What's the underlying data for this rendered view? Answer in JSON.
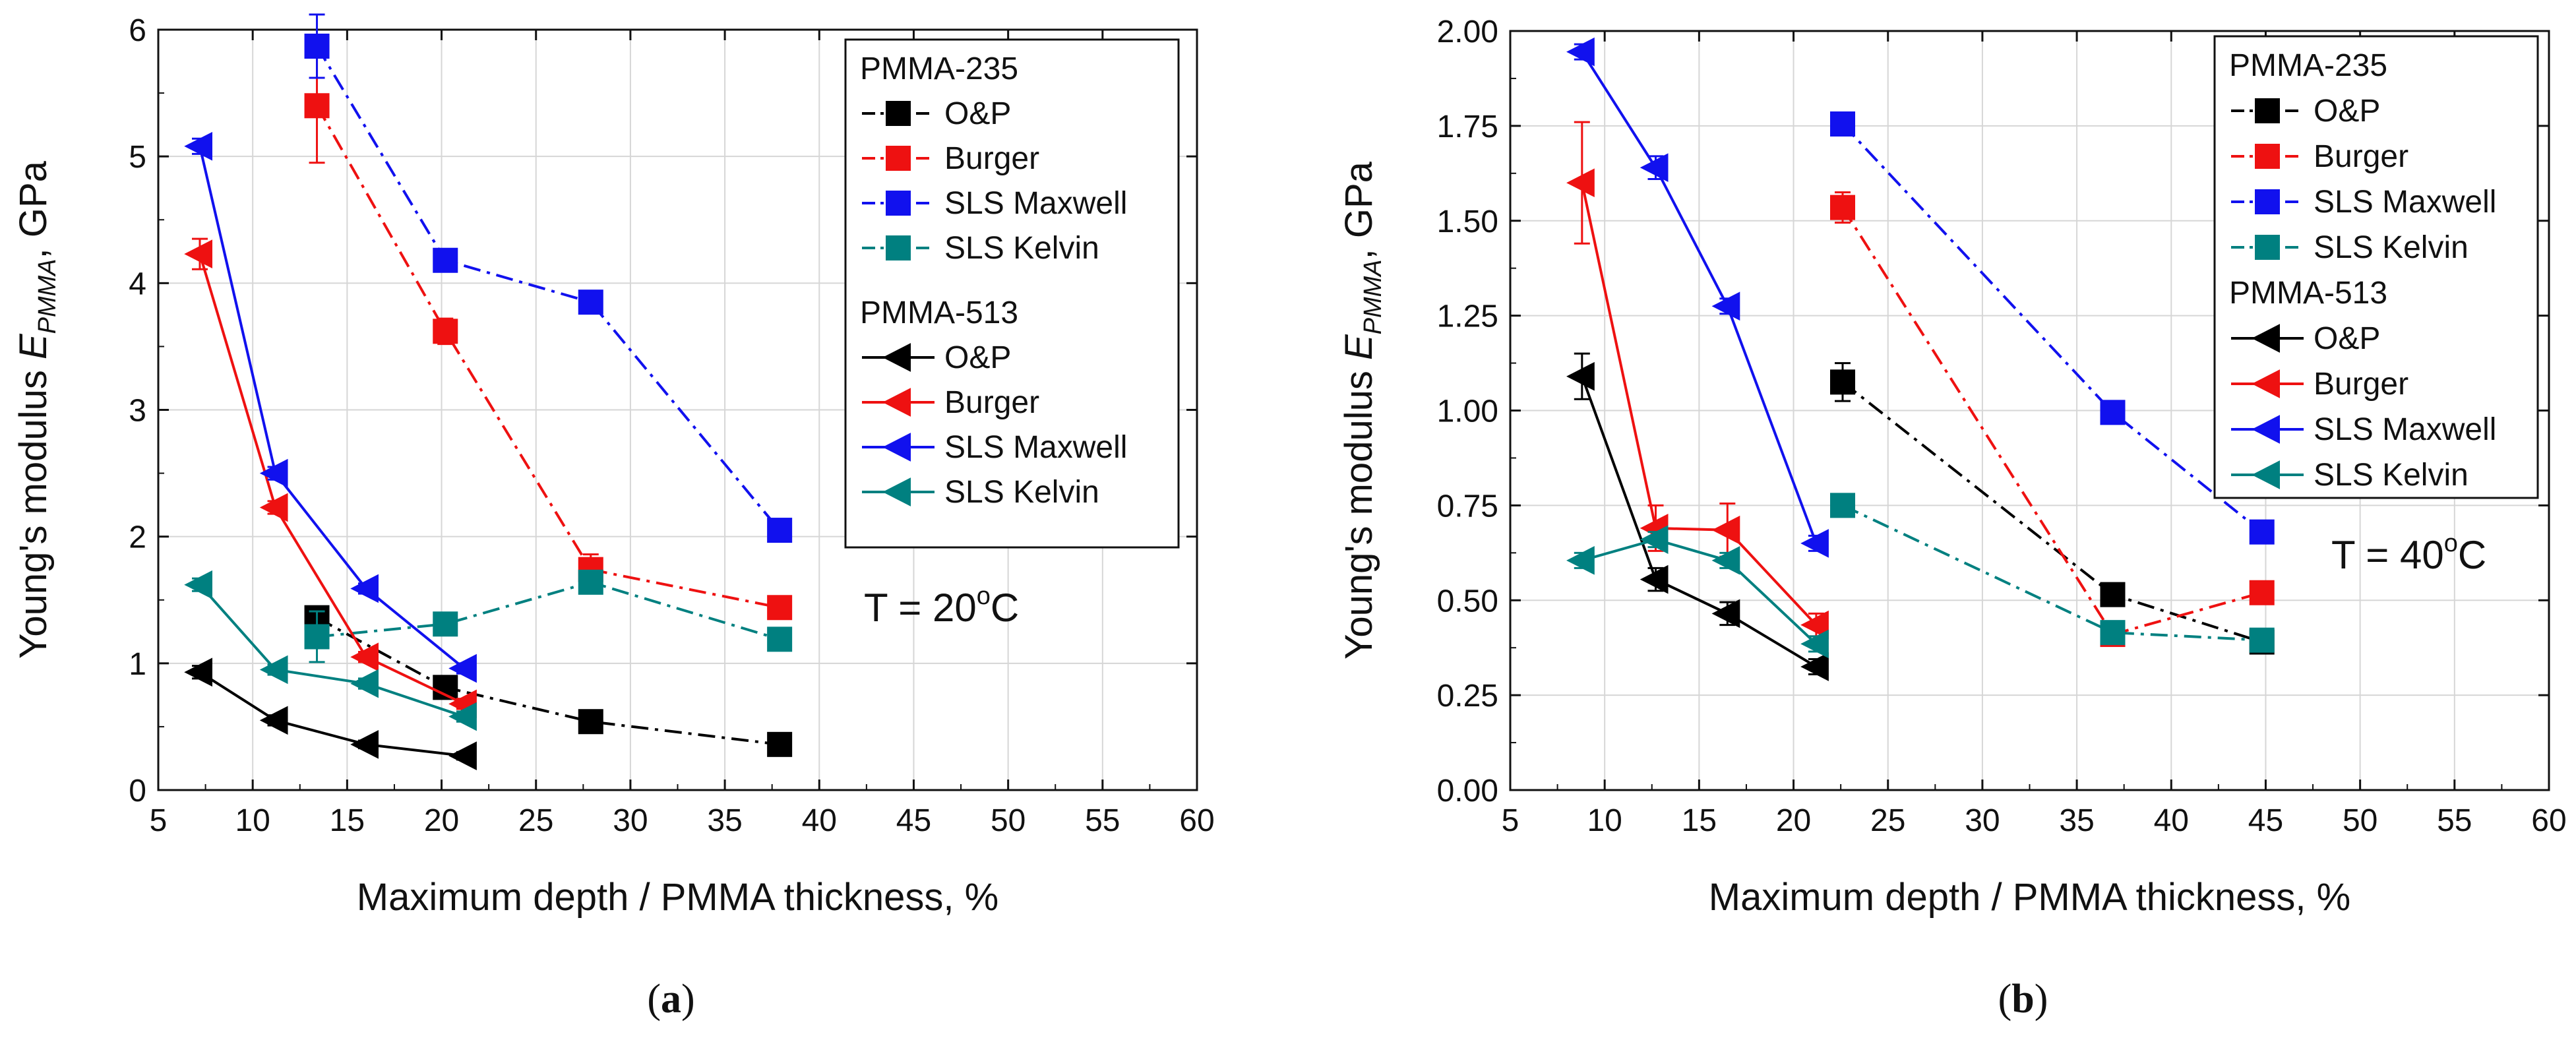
{
  "chart_data": [
    {
      "type": "line",
      "panel_label": "a",
      "xlabel": "Maximum depth / PMMA thickness, %",
      "ylabel_prefix": "Young's modulus ",
      "ylabel_symbol": "E",
      "ylabel_subscript": "PMMA",
      "ylabel_suffix": ", GPa",
      "xlim": [
        5,
        60
      ],
      "ylim": [
        0,
        6
      ],
      "xticks": [
        5,
        10,
        15,
        20,
        25,
        30,
        35,
        40,
        45,
        50,
        55,
        60
      ],
      "yticks": [
        0,
        1,
        2,
        3,
        4,
        5,
        6
      ],
      "ytick_labels": [
        "0",
        "1",
        "2",
        "3",
        "4",
        "5",
        "6"
      ],
      "grid": true,
      "legend_position": "top-right",
      "annotation": {
        "prefix": "T = 20",
        "degree": "o",
        "unit": "C"
      },
      "groups": [
        {
          "title": "PMMA-235",
          "series": [
            {
              "name": "O&P",
              "color": "#000000",
              "marker": "square",
              "linestyle": "dashdot",
              "x": [
                13.4,
                20.2,
                27.9,
                37.9
              ],
              "y": [
                1.36,
                0.81,
                0.54,
                0.36
              ],
              "err": [
                0.05,
                0.05,
                0.04,
                0.03
              ]
            },
            {
              "name": "Burger",
              "color": "#ee1111",
              "marker": "square",
              "linestyle": "dashdot",
              "x": [
                13.4,
                20.2,
                27.9,
                37.9
              ],
              "y": [
                5.4,
                3.62,
                1.74,
                1.44
              ],
              "err": [
                0.45,
                0.1,
                0.12,
                0.05
              ]
            },
            {
              "name": "SLS Maxwell",
              "color": "#1111ee",
              "marker": "square",
              "linestyle": "dashdot",
              "x": [
                13.4,
                20.2,
                27.9,
                37.9
              ],
              "y": [
                5.87,
                4.18,
                3.85,
                2.05
              ],
              "err": [
                0.25,
                0.05,
                0.05,
                0.04
              ]
            },
            {
              "name": "SLS Kelvin",
              "color": "#008080",
              "marker": "square",
              "linestyle": "dashdot",
              "x": [
                13.4,
                20.2,
                27.9,
                37.9
              ],
              "y": [
                1.21,
                1.31,
                1.64,
                1.19
              ],
              "err": [
                0.2,
                0.04,
                0.04,
                0.04
              ]
            }
          ]
        },
        {
          "title": "PMMA-513",
          "series": [
            {
              "name": "O&P",
              "color": "#000000",
              "marker": "triangle-left",
              "linestyle": "solid",
              "x": [
                7.2,
                11.2,
                16.0,
                21.2
              ],
              "y": [
                0.93,
                0.55,
                0.36,
                0.27
              ],
              "err": [
                0.05,
                0.04,
                0.03,
                0.03
              ]
            },
            {
              "name": "Burger",
              "color": "#ee1111",
              "marker": "triangle-left",
              "linestyle": "solid",
              "x": [
                7.2,
                11.2,
                16.0,
                21.2
              ],
              "y": [
                4.23,
                2.23,
                1.05,
                0.68
              ],
              "err": [
                0.12,
                0.05,
                0.04,
                0.04
              ]
            },
            {
              "name": "SLS Maxwell",
              "color": "#1111ee",
              "marker": "triangle-left",
              "linestyle": "solid",
              "x": [
                7.2,
                11.2,
                16.0,
                21.2
              ],
              "y": [
                5.08,
                2.5,
                1.59,
                0.96
              ],
              "err": [
                0.06,
                0.05,
                0.04,
                0.04
              ]
            },
            {
              "name": "SLS Kelvin",
              "color": "#008080",
              "marker": "triangle-left",
              "linestyle": "solid",
              "x": [
                7.2,
                11.2,
                16.0,
                21.2
              ],
              "y": [
                1.62,
                0.95,
                0.84,
                0.58
              ],
              "err": [
                0.05,
                0.04,
                0.04,
                0.04
              ]
            }
          ]
        }
      ]
    },
    {
      "type": "line",
      "panel_label": "b",
      "xlabel": "Maximum depth / PMMA thickness, %",
      "ylabel_prefix": "Young's modulus ",
      "ylabel_symbol": "E",
      "ylabel_subscript": "PMMA",
      "ylabel_suffix": ", GPa",
      "xlim": [
        5,
        60
      ],
      "ylim": [
        0,
        2
      ],
      "xticks": [
        5,
        10,
        15,
        20,
        25,
        30,
        35,
        40,
        45,
        50,
        55,
        60
      ],
      "yticks": [
        0,
        0.25,
        0.5,
        0.75,
        1.0,
        1.25,
        1.5,
        1.75,
        2.0
      ],
      "ytick_labels": [
        "0.00",
        "0.25",
        "0.50",
        "0.75",
        "1.00",
        "1.25",
        "1.50",
        "1.75",
        "2.00"
      ],
      "grid": true,
      "legend_position": "top-right",
      "annotation": {
        "prefix": "T = 40",
        "degree": "o",
        "unit": "C"
      },
      "groups": [
        {
          "title": "PMMA-235",
          "series": [
            {
              "name": "O&P",
              "color": "#000000",
              "marker": "square",
              "linestyle": "dashdot",
              "x": [
                22.6,
                36.9,
                44.8
              ],
              "y": [
                1.075,
                0.515,
                0.39
              ],
              "err": [
                0.05,
                0.02,
                0.02
              ]
            },
            {
              "name": "Burger",
              "color": "#ee1111",
              "marker": "square",
              "linestyle": "dashdot",
              "x": [
                22.6,
                36.9,
                44.8
              ],
              "y": [
                1.535,
                0.41,
                0.52
              ],
              "err": [
                0.04,
                0.02,
                0.02
              ]
            },
            {
              "name": "SLS Maxwell",
              "color": "#1111ee",
              "marker": "square",
              "linestyle": "dashdot",
              "x": [
                22.6,
                36.9,
                44.8
              ],
              "y": [
                1.755,
                0.995,
                0.68
              ],
              "err": [
                0.02,
                0.02,
                0.02
              ]
            },
            {
              "name": "SLS Kelvin",
              "color": "#008080",
              "marker": "square",
              "linestyle": "dashdot",
              "x": [
                22.6,
                36.9,
                44.8
              ],
              "y": [
                0.75,
                0.415,
                0.395
              ],
              "err": [
                0.02,
                0.02,
                0.02
              ]
            }
          ]
        },
        {
          "title": "PMMA-513",
          "series": [
            {
              "name": "O&P",
              "color": "#000000",
              "marker": "triangle-left",
              "linestyle": "solid",
              "x": [
                8.8,
                12.7,
                16.5,
                21.2
              ],
              "y": [
                1.09,
                0.555,
                0.465,
                0.325
              ],
              "err": [
                0.06,
                0.03,
                0.03,
                0.02
              ]
            },
            {
              "name": "Burger",
              "color": "#ee1111",
              "marker": "triangle-left",
              "linestyle": "solid",
              "x": [
                8.8,
                12.7,
                16.5,
                21.2
              ],
              "y": [
                1.6,
                0.69,
                0.685,
                0.435
              ],
              "err": [
                0.16,
                0.06,
                0.07,
                0.03
              ]
            },
            {
              "name": "SLS Maxwell",
              "color": "#1111ee",
              "marker": "triangle-left",
              "linestyle": "solid",
              "x": [
                8.8,
                12.7,
                16.5,
                21.2
              ],
              "y": [
                1.945,
                1.64,
                1.275,
                0.65
              ],
              "err": [
                0.02,
                0.03,
                0.02,
                0.02
              ]
            },
            {
              "name": "SLS Kelvin",
              "color": "#008080",
              "marker": "triangle-left",
              "linestyle": "solid",
              "x": [
                8.8,
                12.7,
                16.5,
                21.2
              ],
              "y": [
                0.605,
                0.66,
                0.605,
                0.385
              ],
              "err": [
                0.02,
                0.02,
                0.02,
                0.02
              ]
            }
          ]
        }
      ]
    }
  ]
}
